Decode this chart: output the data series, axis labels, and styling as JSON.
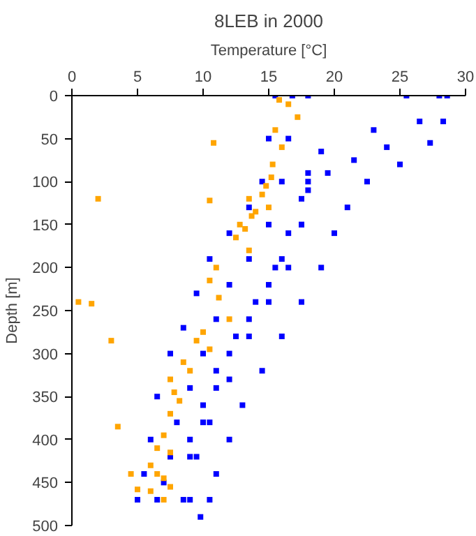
{
  "chart_data": {
    "type": "scatter",
    "title": "8LEB in 2000",
    "xlabel": "Temperature [°C]",
    "ylabel": "Depth [m]",
    "xlim": [
      0,
      30
    ],
    "xticks": [
      0,
      5,
      10,
      15,
      20,
      25,
      30
    ],
    "ylim": [
      500,
      0
    ],
    "yticks": [
      0,
      50,
      100,
      150,
      200,
      250,
      300,
      350,
      400,
      450,
      500
    ],
    "marker": "square",
    "series": [
      {
        "color": "#0000ff",
        "x": [
          15.5,
          15,
          14.5,
          13.5,
          12,
          10.5,
          9.5,
          8.5,
          7.5,
          6.5,
          6,
          5.5,
          5,
          18,
          18,
          17.5,
          16,
          15,
          13.5,
          12,
          11,
          10,
          9,
          8.5,
          16.8,
          16.5,
          16,
          15,
          13.5,
          12,
          11,
          10,
          9,
          8,
          7.5,
          7,
          6.5,
          28.6,
          28.3,
          27.3,
          25,
          22.5,
          21,
          20,
          19,
          17.5,
          16,
          14.5,
          13,
          12,
          11,
          10.5,
          9.8,
          28,
          26.5,
          24,
          21.5,
          19.5,
          18,
          17.5,
          16.5,
          15,
          13.5,
          12,
          10.5,
          9.5,
          9,
          25.5,
          23,
          19,
          18,
          17.5,
          16.5,
          15.5,
          14,
          12.5,
          11,
          10,
          9
        ],
        "values": [
          0,
          50,
          100,
          130,
          160,
          190,
          230,
          270,
          300,
          350,
          400,
          440,
          470,
          0,
          100,
          150,
          190,
          220,
          260,
          300,
          340,
          380,
          420,
          470,
          0,
          50,
          100,
          150,
          190,
          220,
          260,
          300,
          340,
          380,
          420,
          450,
          470,
          0,
          30,
          55,
          80,
          100,
          130,
          160,
          200,
          240,
          280,
          320,
          360,
          400,
          440,
          470,
          490,
          0,
          30,
          60,
          75,
          90,
          110,
          150,
          200,
          240,
          280,
          330,
          380,
          420,
          470,
          0,
          40,
          65,
          90,
          120,
          160,
          200,
          240,
          280,
          320,
          360,
          400
        ]
      },
      {
        "color": "#ffa500",
        "x": [
          15.8,
          16.5,
          17.2,
          15.5,
          16,
          15.3,
          15.2,
          14.8,
          14.5,
          13.5,
          15,
          14,
          13.7,
          12.8,
          13.2,
          2,
          10.8,
          10.5,
          12.5,
          13.5,
          11,
          10.5,
          11.2,
          12,
          0.5,
          1.5,
          10,
          9.5,
          10.5,
          3,
          8.5,
          9,
          7.5,
          7.8,
          8.2,
          7.5,
          3.5,
          7,
          6.5,
          7.5,
          6,
          6.5,
          7,
          4.5,
          5,
          6,
          7.5,
          7
        ],
        "values": [
          5,
          10,
          25,
          40,
          60,
          80,
          95,
          105,
          115,
          120,
          130,
          135,
          140,
          150,
          155,
          120,
          55,
          122,
          165,
          180,
          200,
          215,
          235,
          260,
          240,
          242,
          275,
          285,
          295,
          285,
          310,
          320,
          330,
          345,
          355,
          370,
          385,
          395,
          410,
          415,
          430,
          440,
          445,
          440,
          458,
          460,
          455,
          470
        ]
      }
    ]
  }
}
